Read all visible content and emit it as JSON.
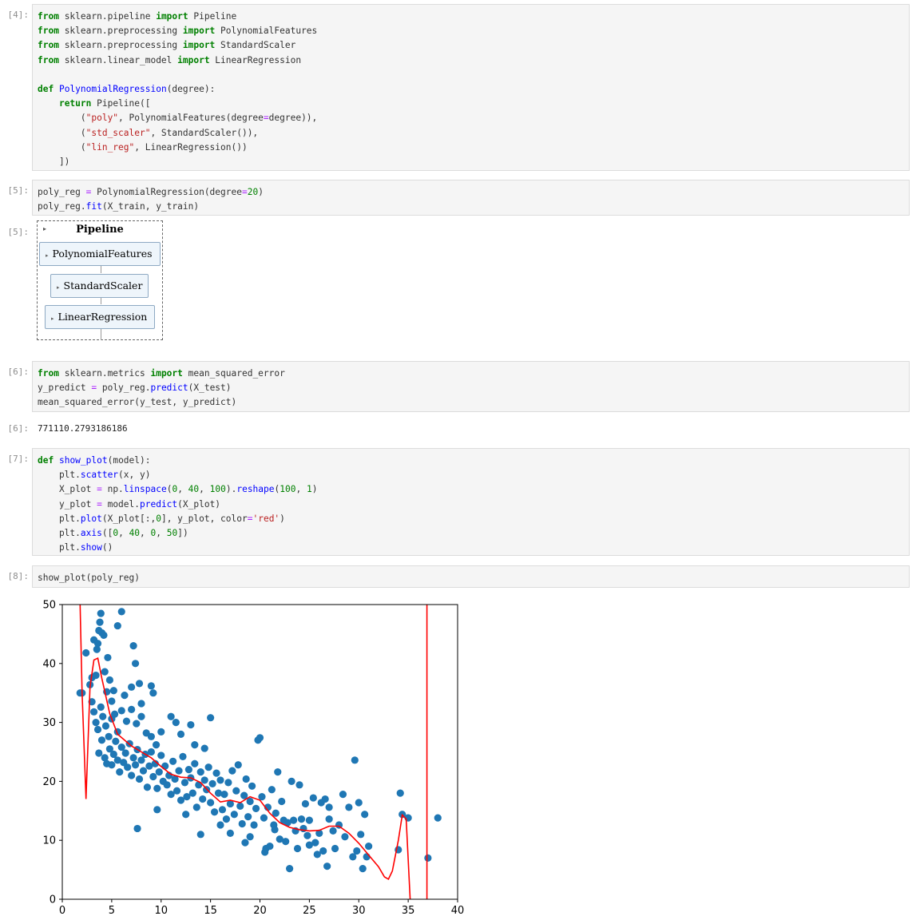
{
  "cells": {
    "c4": {
      "prompt": "[4]:"
    },
    "c5": {
      "prompt": "[5]:",
      "out_prompt": "[5]:"
    },
    "c6": {
      "prompt": "[6]:",
      "out_prompt": "[6]:",
      "output": "771110.2793186186"
    },
    "c7": {
      "prompt": "[7]:"
    },
    "c8": {
      "prompt": "[8]:"
    }
  },
  "pipeline": {
    "title": "Pipeline",
    "steps": [
      "PolynomialFeatures",
      "StandardScaler",
      "LinearRegression"
    ]
  },
  "chart_data": {
    "type": "scatter",
    "xlim": [
      0,
      40
    ],
    "ylim": [
      0,
      50
    ],
    "xticks": [
      0,
      5,
      10,
      15,
      20,
      25,
      30,
      35,
      40
    ],
    "yticks": [
      0,
      10,
      20,
      30,
      40,
      50
    ],
    "scatter_color": "#1f77b4",
    "line_color": "#ff0000",
    "series": [
      {
        "kind": "scatter",
        "points": [
          [
            2.0,
            35
          ],
          [
            2.4,
            41.8
          ],
          [
            2.8,
            36.4
          ],
          [
            3.0,
            37.6
          ],
          [
            3.2,
            44
          ],
          [
            3.4,
            38
          ],
          [
            3.5,
            42.4
          ],
          [
            3.6,
            43.4
          ],
          [
            3.7,
            45.6
          ],
          [
            3.8,
            47
          ],
          [
            3.9,
            48.5
          ],
          [
            4.0,
            45.2
          ],
          [
            4.2,
            44.8
          ],
          [
            4.3,
            38.6
          ],
          [
            4.5,
            35.2
          ],
          [
            4.6,
            41
          ],
          [
            4.8,
            37.2
          ],
          [
            5.0,
            33.6
          ],
          [
            5.2,
            35.4
          ],
          [
            5.6,
            46.4
          ],
          [
            6.0,
            48.8
          ],
          [
            6.3,
            34.6
          ],
          [
            7.0,
            36
          ],
          [
            7.2,
            43
          ],
          [
            7.4,
            40
          ],
          [
            7.6,
            12
          ],
          [
            7.8,
            36.6
          ],
          [
            8.0,
            33.2
          ],
          [
            9.0,
            36.2
          ],
          [
            9.2,
            35
          ],
          [
            3.0,
            33.5
          ],
          [
            3.2,
            31.8
          ],
          [
            3.4,
            30
          ],
          [
            3.6,
            28.8
          ],
          [
            3.7,
            24.8
          ],
          [
            3.9,
            32.6
          ],
          [
            4.1,
            31
          ],
          [
            4.4,
            29.4
          ],
          [
            4.7,
            27.6
          ],
          [
            5.0,
            30.6
          ],
          [
            5.3,
            31.4
          ],
          [
            5.6,
            28.4
          ],
          [
            6.0,
            32
          ],
          [
            6.5,
            30.2
          ],
          [
            7.0,
            32.2
          ],
          [
            7.5,
            29.8
          ],
          [
            8.0,
            31
          ],
          [
            8.5,
            28.2
          ],
          [
            9.0,
            27.6
          ],
          [
            9.5,
            26.2
          ],
          [
            10.0,
            28.4
          ],
          [
            11.0,
            31
          ],
          [
            11.5,
            30
          ],
          [
            12.0,
            28
          ],
          [
            13.0,
            29.6
          ],
          [
            13.4,
            26.2
          ],
          [
            14.4,
            25.6
          ],
          [
            15.0,
            30.8
          ],
          [
            4.0,
            27
          ],
          [
            4.3,
            24
          ],
          [
            4.5,
            23
          ],
          [
            4.8,
            25.5
          ],
          [
            5.0,
            22.8
          ],
          [
            5.2,
            24.6
          ],
          [
            5.4,
            26.8
          ],
          [
            5.6,
            23.6
          ],
          [
            5.8,
            21.6
          ],
          [
            6.0,
            25.8
          ],
          [
            6.2,
            23.2
          ],
          [
            6.4,
            24.8
          ],
          [
            6.6,
            22.4
          ],
          [
            6.8,
            26.4
          ],
          [
            7.0,
            21
          ],
          [
            7.2,
            24
          ],
          [
            7.4,
            22.8
          ],
          [
            7.6,
            25.4
          ],
          [
            7.8,
            20.4
          ],
          [
            8.0,
            23.6
          ],
          [
            8.2,
            21.8
          ],
          [
            8.4,
            24.6
          ],
          [
            8.6,
            19
          ],
          [
            8.8,
            22.6
          ],
          [
            9.0,
            25
          ],
          [
            9.2,
            20.8
          ],
          [
            9.4,
            23
          ],
          [
            9.6,
            18.8
          ],
          [
            9.8,
            21.6
          ],
          [
            10.0,
            24.4
          ],
          [
            10.2,
            20
          ],
          [
            10.4,
            22.6
          ],
          [
            10.6,
            19.4
          ],
          [
            10.8,
            21
          ],
          [
            11.0,
            17.8
          ],
          [
            11.2,
            23.4
          ],
          [
            11.4,
            20.4
          ],
          [
            11.6,
            18.4
          ],
          [
            11.8,
            21.8
          ],
          [
            12.0,
            16.8
          ],
          [
            12.2,
            24.2
          ],
          [
            12.4,
            19.8
          ],
          [
            12.6,
            17.4
          ],
          [
            12.8,
            22
          ],
          [
            13.0,
            20.6
          ],
          [
            13.2,
            18
          ],
          [
            13.4,
            23
          ],
          [
            13.6,
            15.6
          ],
          [
            13.8,
            19.4
          ],
          [
            14.0,
            21.6
          ],
          [
            14.2,
            17
          ],
          [
            14.4,
            20.2
          ],
          [
            14.6,
            18.6
          ],
          [
            14.8,
            22.4
          ],
          [
            15.0,
            16.4
          ],
          [
            15.2,
            19.6
          ],
          [
            15.4,
            14.8
          ],
          [
            15.6,
            21.4
          ],
          [
            15.8,
            18
          ],
          [
            16.0,
            20.2
          ],
          [
            16.2,
            15.2
          ],
          [
            16.4,
            17.8
          ],
          [
            16.6,
            13.6
          ],
          [
            16.8,
            19.8
          ],
          [
            17.0,
            16.2
          ],
          [
            17.2,
            21.8
          ],
          [
            17.4,
            14.4
          ],
          [
            17.6,
            18.4
          ],
          [
            17.8,
            22.8
          ],
          [
            18.0,
            15.8
          ],
          [
            18.2,
            12.8
          ],
          [
            18.4,
            17.6
          ],
          [
            18.6,
            20.4
          ],
          [
            18.8,
            14
          ],
          [
            19.0,
            16.6
          ],
          [
            19.2,
            19.2
          ],
          [
            19.4,
            12.6
          ],
          [
            19.6,
            15.4
          ],
          [
            19.8,
            27
          ],
          [
            20.0,
            27.4
          ],
          [
            20.2,
            17.4
          ],
          [
            20.4,
            13.8
          ],
          [
            20.6,
            8.6
          ],
          [
            20.8,
            15.6
          ],
          [
            21.0,
            9
          ],
          [
            21.2,
            18.6
          ],
          [
            21.4,
            12.6
          ],
          [
            21.6,
            14.6
          ],
          [
            21.8,
            21.6
          ],
          [
            22.0,
            10.2
          ],
          [
            22.2,
            16.6
          ],
          [
            22.4,
            13.4
          ],
          [
            22.6,
            9.8
          ],
          [
            22.8,
            13
          ],
          [
            23.0,
            5.2
          ],
          [
            23.2,
            20
          ],
          [
            23.4,
            13.4
          ],
          [
            23.6,
            11.6
          ],
          [
            23.8,
            8.6
          ],
          [
            24.0,
            19.4
          ],
          [
            24.2,
            13.6
          ],
          [
            24.4,
            12
          ],
          [
            24.6,
            16.2
          ],
          [
            24.8,
            10.8
          ],
          [
            25.0,
            13.4
          ],
          [
            25.4,
            17.2
          ],
          [
            25.6,
            9.6
          ],
          [
            25.8,
            7.6
          ],
          [
            26.0,
            11.2
          ],
          [
            26.2,
            16.4
          ],
          [
            26.4,
            8.2
          ],
          [
            26.6,
            17
          ],
          [
            26.8,
            5.6
          ],
          [
            27.0,
            15.6
          ],
          [
            27.4,
            11.6
          ],
          [
            27.6,
            8.6
          ],
          [
            28.0,
            12.6
          ],
          [
            28.4,
            17.8
          ],
          [
            28.6,
            10.6
          ],
          [
            29.0,
            15.6
          ],
          [
            29.4,
            7.2
          ],
          [
            29.6,
            23.6
          ],
          [
            29.8,
            8.2
          ],
          [
            30.0,
            16.4
          ],
          [
            30.2,
            11
          ],
          [
            30.4,
            5.2
          ],
          [
            30.6,
            14.4
          ],
          [
            30.8,
            7.2
          ],
          [
            31.0,
            9
          ],
          [
            34.0,
            8.4
          ],
          [
            34.2,
            18
          ],
          [
            34.4,
            14.4
          ],
          [
            35.0,
            13.8
          ],
          [
            37.0,
            7
          ],
          [
            38.0,
            13.8
          ],
          [
            1.8,
            35
          ],
          [
            17.0,
            11.2
          ],
          [
            18.5,
            9.6
          ],
          [
            9.6,
            15.2
          ],
          [
            12.5,
            14.4
          ],
          [
            14.0,
            11
          ],
          [
            16.0,
            12.6
          ],
          [
            19.0,
            10.6
          ],
          [
            20.5,
            8
          ],
          [
            21.5,
            11.8
          ],
          [
            25.0,
            9.2
          ],
          [
            27.0,
            13.6
          ]
        ]
      },
      {
        "kind": "line",
        "points": [
          [
            1.8,
            50
          ],
          [
            2.0,
            35
          ],
          [
            2.4,
            17
          ],
          [
            2.8,
            36
          ],
          [
            3.2,
            40.6
          ],
          [
            3.6,
            40.9
          ],
          [
            4.0,
            37.5
          ],
          [
            4.8,
            31.5
          ],
          [
            5.6,
            28
          ],
          [
            7.0,
            26
          ],
          [
            8.0,
            25
          ],
          [
            9.0,
            24
          ],
          [
            10.0,
            22.5
          ],
          [
            11.0,
            21.2
          ],
          [
            12.0,
            20.7
          ],
          [
            13.0,
            20.6
          ],
          [
            14.0,
            19.8
          ],
          [
            15.0,
            18
          ],
          [
            16.0,
            16.5
          ],
          [
            17.0,
            16.8
          ],
          [
            18.0,
            16.4
          ],
          [
            19.0,
            17.4
          ],
          [
            20.0,
            16.8
          ],
          [
            21.0,
            14.6
          ],
          [
            22.0,
            13
          ],
          [
            23.0,
            12.2
          ],
          [
            24.0,
            11.8
          ],
          [
            25.0,
            11.6
          ],
          [
            26.0,
            11.7
          ],
          [
            27.0,
            12.4
          ],
          [
            28.0,
            12.4
          ],
          [
            29.0,
            11.2
          ],
          [
            30.0,
            9.5
          ],
          [
            31.0,
            7.5
          ],
          [
            32.0,
            5.5
          ],
          [
            32.6,
            3.8
          ],
          [
            33.0,
            3.4
          ],
          [
            33.4,
            4.8
          ],
          [
            34.0,
            10
          ],
          [
            34.4,
            14.3
          ],
          [
            34.8,
            13.6
          ],
          [
            35.2,
            0
          ]
        ]
      },
      {
        "kind": "line",
        "points": [
          [
            36.9,
            0
          ],
          [
            36.9,
            50
          ]
        ]
      }
    ]
  }
}
